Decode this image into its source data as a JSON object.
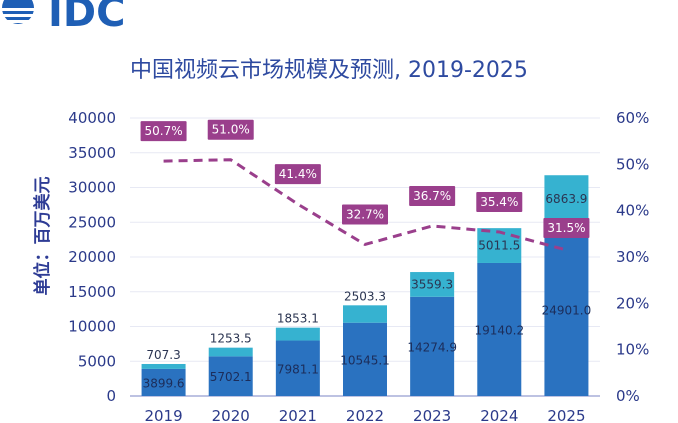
{
  "logo": {
    "text": "IDC"
  },
  "chart_data": {
    "type": "bar",
    "title": "中国视频云市场规模及预测, 2019-2025",
    "ylabel": "单位：百万美元",
    "categories": [
      "2019",
      "2020",
      "2021",
      "2022",
      "2023",
      "2024",
      "2025"
    ],
    "ylim": [
      0,
      40000
    ],
    "y_ticks": [
      "0",
      "5000",
      "10000",
      "15000",
      "20000",
      "25000",
      "30000",
      "35000",
      "40000"
    ],
    "y2lim": [
      0,
      0.6
    ],
    "y2_ticks": [
      "0%",
      "10%",
      "20%",
      "30%",
      "40%",
      "50%",
      "60%"
    ],
    "stacked": true,
    "grid": true,
    "series": [
      {
        "values": [
          3899.6,
          5702.1,
          7981.1,
          10545.1,
          14274.9,
          19140.2,
          24901.0
        ],
        "labels": [
          "3899.6",
          "5702.1",
          "7981.1",
          "10545.1",
          "14274.9",
          "19140.2",
          "24901.0"
        ],
        "color": "#2a72c0"
      },
      {
        "values": [
          707.3,
          1253.5,
          1853.1,
          2503.3,
          3559.3,
          5011.5,
          6863.9
        ],
        "labels": [
          "707.3",
          "1253.5",
          "1853.1",
          "2503.3",
          "3559.3",
          "5011.5",
          "6863.9"
        ],
        "color": "#36b2d0"
      }
    ],
    "line": {
      "axis": "right",
      "values": [
        0.507,
        0.51,
        0.414,
        0.327,
        0.367,
        0.354,
        0.315
      ],
      "labels": [
        "50.7%",
        "51.0%",
        "41.4%",
        "32.7%",
        "36.7%",
        "35.4%",
        "31.5%"
      ],
      "color": "#9a3f8c",
      "style": "dashed"
    }
  }
}
